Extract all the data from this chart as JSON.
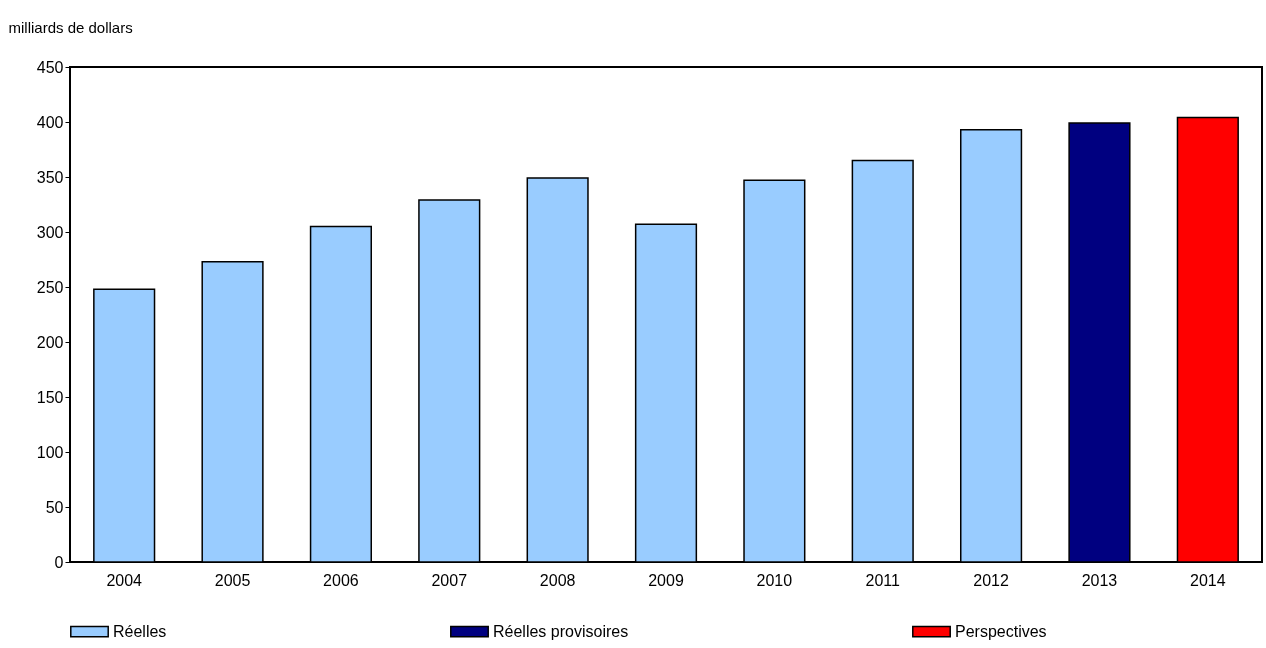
{
  "chart_data": {
    "type": "bar",
    "ylabel": "milliards de dollars",
    "categories": [
      "2004",
      "2005",
      "2006",
      "2007",
      "2008",
      "2009",
      "2010",
      "2011",
      "2012",
      "2013",
      "2014"
    ],
    "series": [
      {
        "name": "Réelles",
        "color": "#99ccff",
        "values": [
          248,
          273,
          305,
          329,
          349,
          307,
          347,
          365,
          393,
          null,
          null
        ]
      },
      {
        "name": "Réelles provisoires",
        "color": "#000080",
        "values": [
          null,
          null,
          null,
          null,
          null,
          null,
          null,
          null,
          null,
          399,
          null
        ]
      },
      {
        "name": "Perspectives",
        "color": "#ff0000",
        "values": [
          null,
          null,
          null,
          null,
          null,
          null,
          null,
          null,
          null,
          null,
          404
        ]
      }
    ],
    "ylim": [
      0,
      450
    ],
    "yticks": [
      0,
      50,
      100,
      150,
      200,
      250,
      300,
      350,
      400,
      450
    ],
    "grid": false,
    "legend": "bottom"
  }
}
